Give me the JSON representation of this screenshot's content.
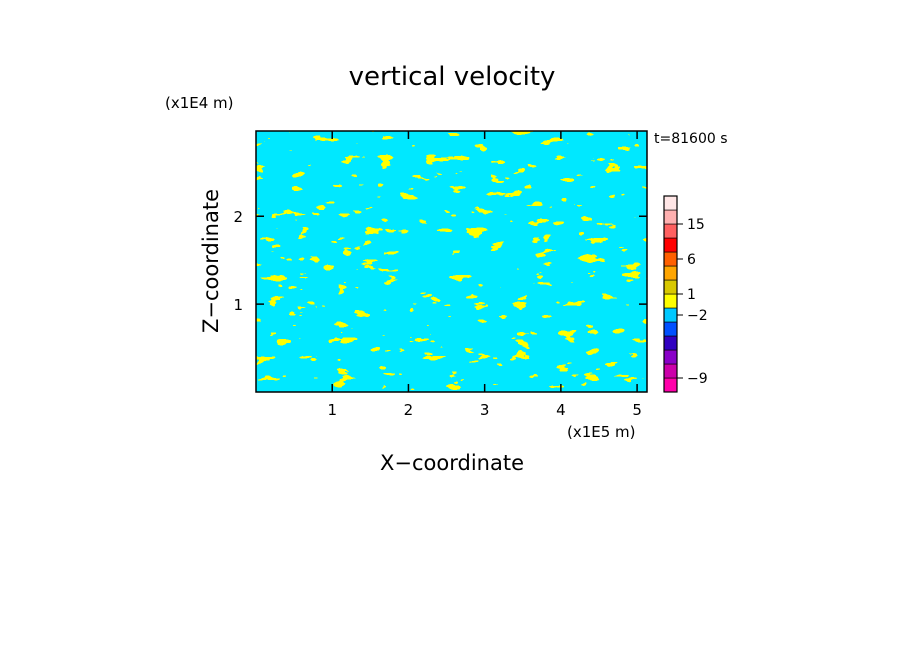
{
  "chart_data": {
    "type": "heatmap",
    "title": "vertical velocity",
    "xlabel": "X−coordinate",
    "ylabel": "Z−coordinate",
    "x_unit": "(x1E5 m)",
    "y_unit": "(x1E4 m)",
    "time_label": "t=81600 s",
    "xlim": [
      0,
      5.13
    ],
    "ylim": [
      0,
      2.97
    ],
    "x_ticks": [
      1,
      2,
      3,
      4,
      5
    ],
    "y_ticks": [
      1,
      2
    ],
    "x_tick_labels": [
      "1",
      "2",
      "3",
      "4",
      "5"
    ],
    "y_tick_labels": [
      "1",
      "2"
    ],
    "field_colors": {
      "positive": "#ffff00",
      "negative": "#00e8ff"
    },
    "colorbar": {
      "levels": [
        {
          "color": "#ff00aa"
        },
        {
          "color": "#cc00aa"
        },
        {
          "color": "#8a00c8"
        },
        {
          "color": "#3000c0"
        },
        {
          "color": "#0050ff"
        },
        {
          "color": "#00c8ff"
        },
        {
          "color": "#ffff00"
        },
        {
          "color": "#d8c800"
        },
        {
          "color": "#ffa500"
        },
        {
          "color": "#ff6000"
        },
        {
          "color": "#ff0000"
        },
        {
          "color": "#ff6060"
        },
        {
          "color": "#ffb0b0"
        },
        {
          "color": "#ffe6e6"
        }
      ],
      "labels": [
        {
          "text": "−9",
          "level": 1
        },
        {
          "text": "−2",
          "level": 5.5
        },
        {
          "text": "1",
          "level": 7
        },
        {
          "text": "6",
          "level": 9.5
        },
        {
          "text": "15",
          "level": 12
        }
      ]
    }
  }
}
